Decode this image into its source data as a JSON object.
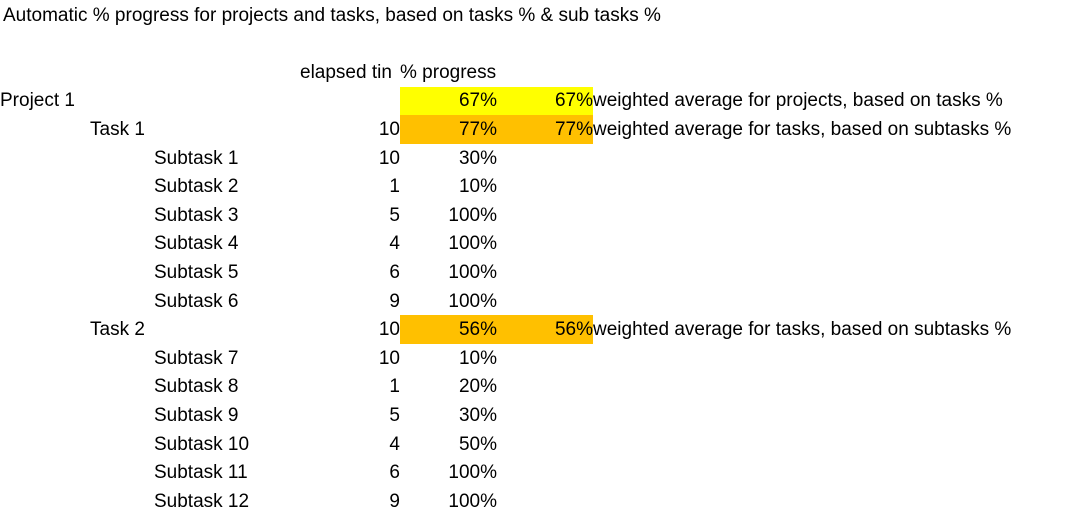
{
  "title": "Automatic % progress for projects and tasks, based on tasks % & sub tasks %",
  "colors": {
    "background": "#FFFFFF",
    "text": "#000000",
    "highlight_yellow": "#FFFF00",
    "highlight_orange": "#FFC000"
  },
  "table": {
    "headers": {
      "elapsed_time": "elapsed tin",
      "progress": "% progress"
    },
    "rows": [
      {
        "label": "Project 1",
        "level": "project",
        "elapsed": "",
        "pct": "67%",
        "pct2": "67%",
        "note": "weighted average for projects, based on tasks %",
        "highlight": "yellow"
      },
      {
        "label": "Task 1",
        "level": "task",
        "elapsed": "10",
        "pct": "77%",
        "pct2": "77%",
        "note": "weighted average for tasks, based on subtasks %",
        "highlight": "orange"
      },
      {
        "label": "Subtask 1",
        "level": "subtask",
        "elapsed": "10",
        "pct": "30%",
        "pct2": "",
        "note": "",
        "highlight": ""
      },
      {
        "label": "Subtask 2",
        "level": "subtask",
        "elapsed": "1",
        "pct": "10%",
        "pct2": "",
        "note": "",
        "highlight": ""
      },
      {
        "label": "Subtask 3",
        "level": "subtask",
        "elapsed": "5",
        "pct": "100%",
        "pct2": "",
        "note": "",
        "highlight": ""
      },
      {
        "label": "Subtask 4",
        "level": "subtask",
        "elapsed": "4",
        "pct": "100%",
        "pct2": "",
        "note": "",
        "highlight": ""
      },
      {
        "label": "Subtask 5",
        "level": "subtask",
        "elapsed": "6",
        "pct": "100%",
        "pct2": "",
        "note": "",
        "highlight": ""
      },
      {
        "label": "Subtask 6",
        "level": "subtask",
        "elapsed": "9",
        "pct": "100%",
        "pct2": "",
        "note": "",
        "highlight": ""
      },
      {
        "label": "Task 2",
        "level": "task",
        "elapsed": "10",
        "pct": "56%",
        "pct2": "56%",
        "note": "weighted average for tasks, based on subtasks %",
        "highlight": "orange"
      },
      {
        "label": "Subtask 7",
        "level": "subtask",
        "elapsed": "10",
        "pct": "10%",
        "pct2": "",
        "note": "",
        "highlight": ""
      },
      {
        "label": "Subtask 8",
        "level": "subtask",
        "elapsed": "1",
        "pct": "20%",
        "pct2": "",
        "note": "",
        "highlight": ""
      },
      {
        "label": "Subtask 9",
        "level": "subtask",
        "elapsed": "5",
        "pct": "30%",
        "pct2": "",
        "note": "",
        "highlight": ""
      },
      {
        "label": "Subtask 10",
        "level": "subtask",
        "elapsed": "4",
        "pct": "50%",
        "pct2": "",
        "note": "",
        "highlight": ""
      },
      {
        "label": "Subtask 11",
        "level": "subtask",
        "elapsed": "6",
        "pct": "100%",
        "pct2": "",
        "note": "",
        "highlight": ""
      },
      {
        "label": "Subtask 12",
        "level": "subtask",
        "elapsed": "9",
        "pct": "100%",
        "pct2": "",
        "note": "",
        "highlight": ""
      }
    ]
  }
}
